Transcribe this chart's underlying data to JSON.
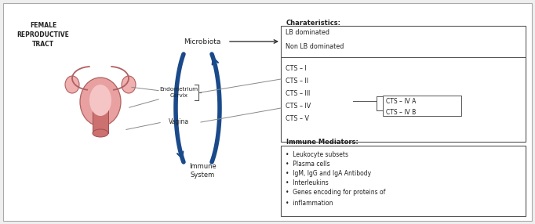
{
  "bg_color": "#efefef",
  "inner_bg": "#ffffff",
  "border_color": "#aaaaaa",
  "text_color": "#222222",
  "arrow_color": "#1a4a8a",
  "label_female_tract": "FEMALE\nREPRODUCTIVE\nTRACT",
  "label_microbiota": "Microbiota",
  "label_endometrium": "Endometrium\nCervix",
  "label_vagina": "Vagina",
  "label_immune": "Immune\nSystem",
  "label_characteristics": "Charateristics:",
  "box1_lines": [
    "LB dominated",
    "Non LB dominated"
  ],
  "box2_lines": [
    "CTS – I",
    "CTS – II",
    "CTS – III",
    "CTS – IV",
    "CTS – V"
  ],
  "box3_lines": [
    "CTS – IV A",
    "CTS – IV B"
  ],
  "label_immune_mediators": "Immune Mediators:",
  "immune_mediator_items": [
    "Leukocyte subsets",
    "Plasma cells",
    "IgM, IgG and IgA Antibody",
    "Interleukins",
    "Genes encoding for proteins of",
    "inflammation"
  ]
}
